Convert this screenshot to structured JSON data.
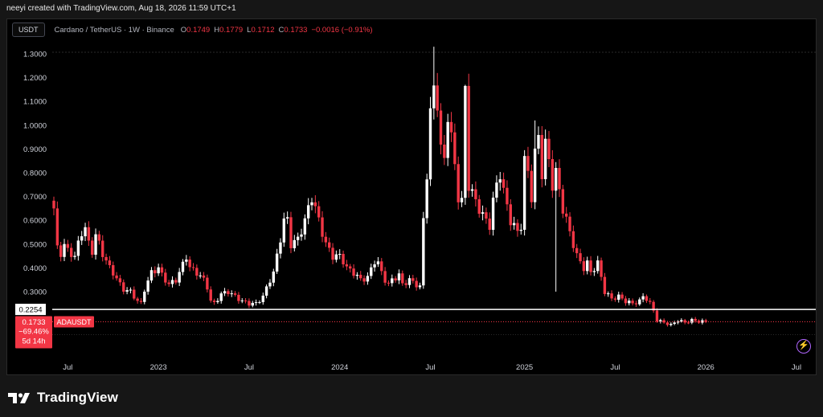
{
  "header": {
    "credit": "neeyi created with TradingView.com, Aug 18, 2026 11:59 UTC+1"
  },
  "legend": {
    "quote": "USDT",
    "symbol": "Cardano / TetherUS · 1W · Binance",
    "o_label": "O",
    "o": "0.1749",
    "h_label": "H",
    "h": "0.1779",
    "l_label": "L",
    "l": "0.1712",
    "c_label": "C",
    "c": "0.1733",
    "change": "−0.0016 (−0.91%)"
  },
  "brand": {
    "name": "TradingView"
  },
  "icons": {
    "logo": "tradingview-logo-icon",
    "alert": "lightning-icon"
  },
  "colors": {
    "up": "#ffffff",
    "down": "#f23645",
    "background": "#000000",
    "support": "#ffffff"
  },
  "chart_data": {
    "type": "candlestick",
    "symbol": "ADAUSDT",
    "interval": "1W",
    "yticks": [
      "1.3000",
      "1.2000",
      "1.1000",
      "1.0000",
      "0.9000",
      "0.8000",
      "0.7000",
      "0.6000",
      "0.5000",
      "0.4000",
      "0.3000"
    ],
    "ylim": [
      0.13,
      1.34
    ],
    "xticks": [
      "Jul",
      "2023",
      "Jul",
      "2024",
      "Jul",
      "2025",
      "Jul",
      "2026",
      "Jul"
    ],
    "x_range_weeks": [
      0,
      216
    ],
    "xtick_weeks": [
      4,
      30,
      56,
      82,
      108,
      135,
      161,
      187,
      213
    ],
    "horizontal_line": {
      "value": 0.2254,
      "label": "0.2254"
    },
    "last_price": {
      "value": 0.1733,
      "label": "0.1733",
      "change_pct": "−69.46%",
      "countdown": "5d 14h",
      "symbol_label": "ADAUSDT"
    },
    "anchors": [
      [
        0,
        0.65
      ],
      [
        1,
        0.48
      ],
      [
        2,
        0.46
      ],
      [
        3,
        0.5
      ],
      [
        4,
        0.47
      ],
      [
        6,
        0.45
      ],
      [
        8,
        0.55
      ],
      [
        9,
        0.57
      ],
      [
        10,
        0.5
      ],
      [
        11,
        0.47
      ],
      [
        12,
        0.54
      ],
      [
        13,
        0.5
      ],
      [
        14,
        0.46
      ],
      [
        15,
        0.43
      ],
      [
        16,
        0.4
      ],
      [
        17,
        0.38
      ],
      [
        19,
        0.33
      ],
      [
        20,
        0.31
      ],
      [
        22,
        0.3
      ],
      [
        24,
        0.26
      ],
      [
        25,
        0.25
      ],
      [
        26,
        0.31
      ],
      [
        28,
        0.38
      ],
      [
        30,
        0.4
      ],
      [
        31,
        0.37
      ],
      [
        33,
        0.33
      ],
      [
        35,
        0.35
      ],
      [
        36,
        0.38
      ],
      [
        38,
        0.45
      ],
      [
        39,
        0.4
      ],
      [
        41,
        0.38
      ],
      [
        43,
        0.35
      ],
      [
        44,
        0.32
      ],
      [
        45,
        0.26
      ],
      [
        46,
        0.25
      ],
      [
        48,
        0.29
      ],
      [
        50,
        0.3
      ],
      [
        52,
        0.28
      ],
      [
        54,
        0.26
      ],
      [
        56,
        0.25
      ],
      [
        58,
        0.25
      ],
      [
        60,
        0.28
      ],
      [
        62,
        0.35
      ],
      [
        63,
        0.38
      ],
      [
        64,
        0.45
      ],
      [
        66,
        0.6
      ],
      [
        67,
        0.6
      ],
      [
        68,
        0.5
      ],
      [
        70,
        0.52
      ],
      [
        72,
        0.6
      ],
      [
        73,
        0.65
      ],
      [
        74,
        0.7
      ],
      [
        75,
        0.65
      ],
      [
        76,
        0.6
      ],
      [
        77,
        0.55
      ],
      [
        78,
        0.5
      ],
      [
        80,
        0.45
      ],
      [
        82,
        0.45
      ],
      [
        83,
        0.43
      ],
      [
        84,
        0.4
      ],
      [
        86,
        0.38
      ],
      [
        88,
        0.35
      ],
      [
        90,
        0.36
      ],
      [
        92,
        0.43
      ],
      [
        93,
        0.42
      ],
      [
        94,
        0.38
      ],
      [
        95,
        0.35
      ],
      [
        96,
        0.33
      ],
      [
        97,
        0.35
      ],
      [
        99,
        0.37
      ],
      [
        100,
        0.33
      ],
      [
        102,
        0.35
      ],
      [
        104,
        0.33
      ],
      [
        105,
        0.32
      ],
      [
        106,
        0.6
      ],
      [
        107,
        0.8
      ],
      [
        108,
        1.05
      ],
      [
        109,
        1.15
      ],
      [
        110,
        1.1
      ],
      [
        111,
        0.9
      ],
      [
        112,
        0.85
      ],
      [
        113,
        1.05
      ],
      [
        114,
        0.95
      ],
      [
        116,
        0.7
      ],
      [
        117,
        0.68
      ],
      [
        118,
        1.15
      ],
      [
        119,
        0.75
      ],
      [
        121,
        0.68
      ],
      [
        123,
        0.62
      ],
      [
        125,
        0.58
      ],
      [
        126,
        0.68
      ],
      [
        127,
        0.75
      ],
      [
        128,
        0.8
      ],
      [
        129,
        0.72
      ],
      [
        131,
        0.6
      ],
      [
        133,
        0.55
      ],
      [
        134,
        0.58
      ],
      [
        135,
        0.85
      ],
      [
        136,
        0.8
      ],
      [
        137,
        0.7
      ],
      [
        138,
        0.88
      ],
      [
        139,
        0.95
      ],
      [
        140,
        0.8
      ],
      [
        141,
        0.92
      ],
      [
        142,
        0.85
      ],
      [
        143,
        0.75
      ],
      [
        144,
        0.8
      ],
      [
        146,
        0.65
      ],
      [
        148,
        0.55
      ],
      [
        150,
        0.45
      ],
      [
        152,
        0.4
      ],
      [
        153,
        0.42
      ],
      [
        154,
        0.38
      ],
      [
        156,
        0.42
      ],
      [
        157,
        0.36
      ],
      [
        158,
        0.3
      ],
      [
        160,
        0.27
      ],
      [
        162,
        0.28
      ],
      [
        164,
        0.26
      ],
      [
        166,
        0.25
      ],
      [
        168,
        0.26
      ],
      [
        169,
        0.28
      ],
      [
        170,
        0.27
      ],
      [
        171,
        0.25
      ],
      [
        172,
        0.22
      ],
      [
        173,
        0.18
      ],
      [
        175,
        0.17
      ],
      [
        177,
        0.16
      ],
      [
        179,
        0.18
      ],
      [
        181,
        0.17
      ],
      [
        183,
        0.18
      ],
      [
        185,
        0.175
      ],
      [
        187,
        0.1733
      ]
    ],
    "spikes": [
      {
        "week": 109,
        "high": 1.33
      },
      {
        "week": 118,
        "high": 1.17
      },
      {
        "week": 138,
        "high": 1.02
      },
      {
        "week": 144,
        "low": 0.3
      }
    ]
  }
}
